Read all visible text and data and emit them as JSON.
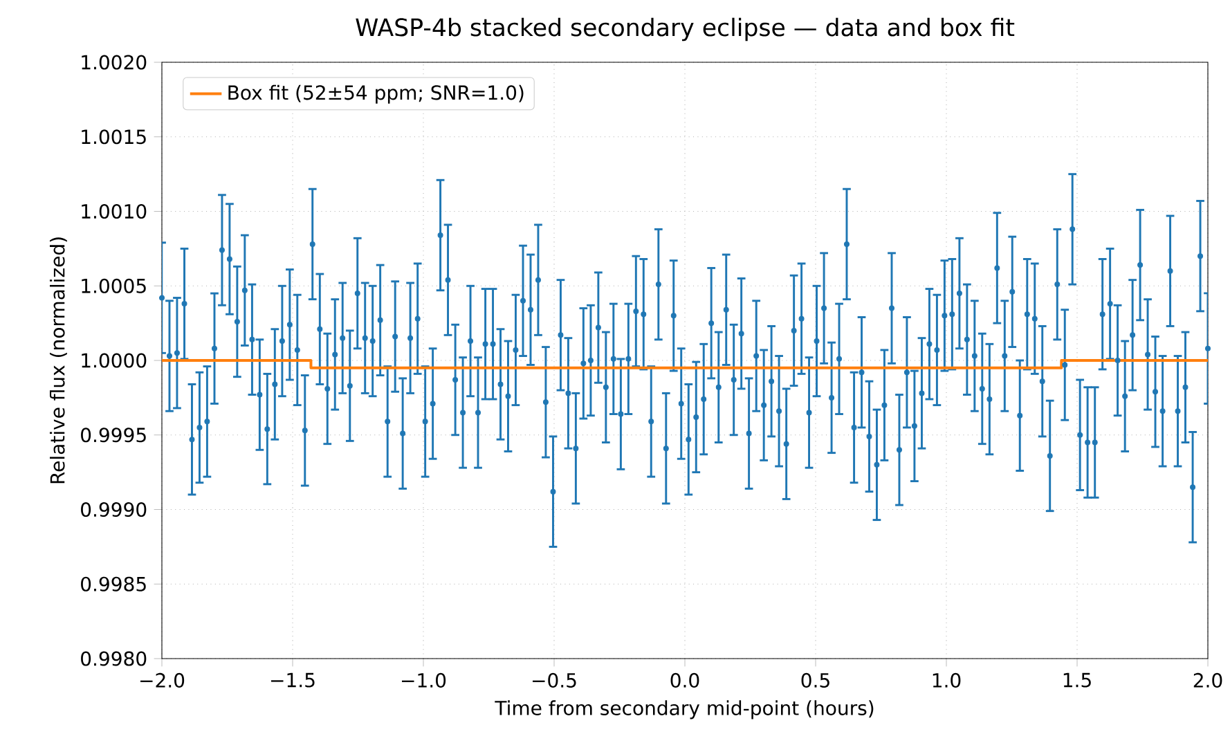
{
  "chart_data": {
    "type": "scatter",
    "title": "WASP-4b stacked secondary eclipse — data and box fit",
    "xlabel": "Time from secondary mid-point (hours)",
    "ylabel": "Relative flux (normalized)",
    "xlim": [
      -2.0,
      2.0
    ],
    "ylim": [
      0.998,
      1.002
    ],
    "xticks": [
      {
        "value": -2.0,
        "label": "−2.0"
      },
      {
        "value": -1.5,
        "label": "−1.5"
      },
      {
        "value": -1.0,
        "label": "−1.0"
      },
      {
        "value": -0.5,
        "label": "−0.5"
      },
      {
        "value": 0.0,
        "label": "0.0"
      },
      {
        "value": 0.5,
        "label": "0.5"
      },
      {
        "value": 1.0,
        "label": "1.0"
      },
      {
        "value": 1.5,
        "label": "1.5"
      },
      {
        "value": 2.0,
        "label": "2.0"
      }
    ],
    "yticks": [
      {
        "value": 0.998,
        "label": "0.9980"
      },
      {
        "value": 0.9985,
        "label": "0.9985"
      },
      {
        "value": 0.999,
        "label": "0.9990"
      },
      {
        "value": 0.9995,
        "label": "0.9995"
      },
      {
        "value": 1.0,
        "label": "1.0000"
      },
      {
        "value": 1.0005,
        "label": "1.0005"
      },
      {
        "value": 1.001,
        "label": "1.0010"
      },
      {
        "value": 1.0015,
        "label": "1.0015"
      },
      {
        "value": 1.002,
        "label": "1.0020"
      }
    ],
    "grid": true,
    "legend": "top left",
    "series": [
      {
        "color": "#1f77b4",
        "marker": "circle",
        "x": [
          -2.0,
          -1.971,
          -1.942,
          -1.914,
          -1.885,
          -1.856,
          -1.827,
          -1.799,
          -1.77,
          -1.741,
          -1.712,
          -1.683,
          -1.655,
          -1.626,
          -1.597,
          -1.568,
          -1.54,
          -1.511,
          -1.482,
          -1.453,
          -1.424,
          -1.396,
          -1.367,
          -1.338,
          -1.309,
          -1.281,
          -1.252,
          -1.223,
          -1.194,
          -1.165,
          -1.137,
          -1.108,
          -1.079,
          -1.05,
          -1.022,
          -0.993,
          -0.964,
          -0.935,
          -0.906,
          -0.878,
          -0.849,
          -0.82,
          -0.791,
          -0.763,
          -0.734,
          -0.705,
          -0.676,
          -0.647,
          -0.619,
          -0.59,
          -0.561,
          -0.532,
          -0.504,
          -0.475,
          -0.446,
          -0.417,
          -0.388,
          -0.36,
          -0.331,
          -0.302,
          -0.273,
          -0.245,
          -0.216,
          -0.187,
          -0.158,
          -0.129,
          -0.101,
          -0.072,
          -0.043,
          -0.014,
          0.014,
          0.043,
          0.072,
          0.101,
          0.129,
          0.158,
          0.187,
          0.216,
          0.245,
          0.273,
          0.302,
          0.331,
          0.36,
          0.388,
          0.417,
          0.446,
          0.475,
          0.504,
          0.532,
          0.561,
          0.59,
          0.619,
          0.647,
          0.676,
          0.705,
          0.734,
          0.763,
          0.791,
          0.82,
          0.849,
          0.878,
          0.906,
          0.935,
          0.964,
          0.993,
          1.022,
          1.05,
          1.079,
          1.108,
          1.137,
          1.165,
          1.194,
          1.223,
          1.252,
          1.281,
          1.309,
          1.338,
          1.367,
          1.396,
          1.424,
          1.453,
          1.482,
          1.511,
          1.54,
          1.568,
          1.597,
          1.626,
          1.655,
          1.683,
          1.712,
          1.741,
          1.77,
          1.799,
          1.827,
          1.856,
          1.885,
          1.914,
          1.942,
          1.971,
          2.0
        ],
        "values": [
          1.00042,
          1.00003,
          1.00005,
          1.00038,
          0.99947,
          0.99955,
          0.99959,
          1.00008,
          1.00074,
          1.00068,
          1.00026,
          1.00047,
          1.00014,
          0.99977,
          0.99954,
          0.99984,
          1.00013,
          1.00024,
          1.00007,
          0.99953,
          1.00078,
          1.00021,
          0.99981,
          1.00004,
          1.00015,
          0.99983,
          1.00045,
          1.00015,
          1.00013,
          1.00027,
          0.99959,
          1.00016,
          0.99951,
          1.00015,
          1.00028,
          0.99959,
          0.99971,
          1.00084,
          1.00054,
          0.99987,
          0.99965,
          1.00013,
          0.99965,
          1.00011,
          1.00011,
          0.99984,
          0.99976,
          1.00007,
          1.0004,
          1.00034,
          1.00054,
          0.99972,
          0.99912,
          1.00017,
          0.99978,
          0.99941,
          0.99998,
          1.0,
          1.00022,
          0.99982,
          1.00001,
          0.99964,
          1.00001,
          1.00033,
          1.00031,
          0.99959,
          1.00051,
          0.99941,
          1.0003,
          0.99971,
          0.99947,
          0.99962,
          0.99974,
          1.00025,
          0.99982,
          1.00034,
          0.99987,
          1.00018,
          0.99951,
          1.00003,
          0.9997,
          0.99986,
          0.99966,
          0.99944,
          1.0002,
          1.00028,
          0.99965,
          1.00013,
          1.00035,
          0.99975,
          1.00001,
          1.00078,
          0.99955,
          0.99992,
          0.99949,
          0.9993,
          0.9997,
          1.00035,
          0.9994,
          0.99992,
          0.99956,
          0.99978,
          1.00011,
          1.00007,
          1.0003,
          1.00031,
          1.00045,
          1.00014,
          1.00003,
          0.99981,
          0.99974,
          1.00062,
          1.00003,
          1.00046,
          0.99963,
          1.00031,
          1.00028,
          0.99986,
          0.99936,
          1.00051,
          0.99997,
          1.00088,
          0.9995,
          0.99945,
          0.99945,
          1.00031,
          1.00038,
          1.0,
          0.99976,
          1.00017,
          1.00064,
          1.00004,
          0.99979,
          0.99966,
          1.0006,
          0.99966,
          0.99982,
          0.99915,
          1.0007,
          1.00008
        ],
        "errors": [
          0.00037,
          0.00037,
          0.00037,
          0.00037,
          0.00037,
          0.00037,
          0.00037,
          0.00037,
          0.00037,
          0.00037,
          0.00037,
          0.00037,
          0.00037,
          0.00037,
          0.00037,
          0.00037,
          0.00037,
          0.00037,
          0.00037,
          0.00037,
          0.00037,
          0.00037,
          0.00037,
          0.00037,
          0.00037,
          0.00037,
          0.00037,
          0.00037,
          0.00037,
          0.00037,
          0.00037,
          0.00037,
          0.00037,
          0.00037,
          0.00037,
          0.00037,
          0.00037,
          0.00037,
          0.00037,
          0.00037,
          0.00037,
          0.00037,
          0.00037,
          0.00037,
          0.00037,
          0.00037,
          0.00037,
          0.00037,
          0.00037,
          0.00037,
          0.00037,
          0.00037,
          0.00037,
          0.00037,
          0.00037,
          0.00037,
          0.00037,
          0.00037,
          0.00037,
          0.00037,
          0.00037,
          0.00037,
          0.00037,
          0.00037,
          0.00037,
          0.00037,
          0.00037,
          0.00037,
          0.00037,
          0.00037,
          0.00037,
          0.00037,
          0.00037,
          0.00037,
          0.00037,
          0.00037,
          0.00037,
          0.00037,
          0.00037,
          0.00037,
          0.00037,
          0.00037,
          0.00037,
          0.00037,
          0.00037,
          0.00037,
          0.00037,
          0.00037,
          0.00037,
          0.00037,
          0.00037,
          0.00037,
          0.00037,
          0.00037,
          0.00037,
          0.00037,
          0.00037,
          0.00037,
          0.00037,
          0.00037,
          0.00037,
          0.00037,
          0.00037,
          0.00037,
          0.00037,
          0.00037,
          0.00037,
          0.00037,
          0.00037,
          0.00037,
          0.00037,
          0.00037,
          0.00037,
          0.00037,
          0.00037,
          0.00037,
          0.00037,
          0.00037,
          0.00037,
          0.00037,
          0.00037,
          0.00037,
          0.00037,
          0.00037,
          0.00037,
          0.00037,
          0.00037,
          0.00037,
          0.00037,
          0.00037,
          0.00037,
          0.00037,
          0.00037,
          0.00037,
          0.00037,
          0.00037,
          0.00037,
          0.00037,
          0.00037,
          0.00037
        ]
      },
      {
        "type": "line",
        "name": "Box fit (52±54 ppm; SNR=1.0)",
        "color": "#ff7f0e",
        "marker": "none",
        "x": [
          -2.0,
          -1.43,
          -1.43,
          1.44,
          1.44,
          2.0
        ],
        "values": [
          1.0,
          1.0,
          0.99995,
          0.99995,
          1.0,
          1.0
        ]
      }
    ]
  }
}
